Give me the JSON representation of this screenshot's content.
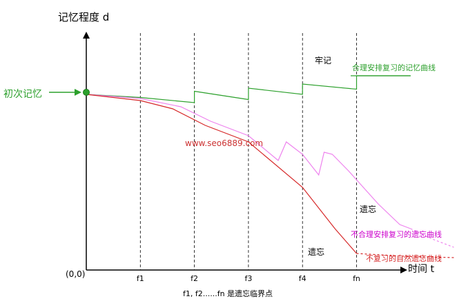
{
  "chart_data": {
    "type": "line",
    "title": "",
    "xlabel": "时间 t",
    "ylabel": "记忆程度 d",
    "origin_label": "(0,0)",
    "x_ticks": [
      "f1",
      "f2",
      "f3",
      "f4",
      "fn"
    ],
    "x_tick_positions": [
      1,
      2,
      3,
      4,
      5
    ],
    "xlim": [
      0,
      6.9
    ],
    "ylim": [
      0,
      100
    ],
    "grid": "dashed vertical lines at f1..fn",
    "footnote": "f1, f2......fn 是遗忘临界点",
    "watermark": "www.seo6889.com",
    "start_label": "初次记忆",
    "colors": {
      "reasonable_review": "#2ca02c",
      "unreasonable_review": "#ee82ee",
      "natural_forgetting": "#d62728",
      "axes": "#000000",
      "start_arrow": "#2ca02c",
      "watermark": "#cc3333"
    },
    "series": [
      {
        "name": "合理安排复习的记忆曲线",
        "annotation": "牢记",
        "style": "solid",
        "points": [
          [
            0,
            85
          ],
          [
            1,
            83.5
          ],
          [
            2,
            81
          ],
          [
            2,
            86.5
          ],
          [
            3,
            82.5
          ],
          [
            3,
            88
          ],
          [
            4,
            85
          ],
          [
            4,
            90
          ],
          [
            5,
            87.5
          ],
          [
            5,
            94
          ],
          [
            6.0,
            94
          ]
        ]
      },
      {
        "name": "不合理安排复习的遗忘曲线",
        "annotation": "遗忘",
        "style": "solid",
        "points": [
          [
            0,
            85
          ],
          [
            1,
            83
          ],
          [
            1.75,
            79
          ],
          [
            2.3,
            72
          ],
          [
            3,
            65
          ],
          [
            3.55,
            53
          ],
          [
            3.7,
            62
          ],
          [
            4.0,
            56
          ],
          [
            4.3,
            46
          ],
          [
            4.4,
            57
          ],
          [
            4.55,
            56
          ],
          [
            4.85,
            48
          ],
          [
            5.4,
            32
          ],
          [
            5.8,
            22
          ],
          [
            6.0,
            20
          ]
        ]
      },
      {
        "name": "",
        "style": "dashed",
        "points": [
          [
            6.0,
            20
          ],
          [
            6.4,
            15
          ],
          [
            6.8,
            11
          ]
        ]
      },
      {
        "name": "不复习的自然遗忘曲线",
        "annotation": "遗忘",
        "style": "solid",
        "points": [
          [
            0,
            85
          ],
          [
            1,
            82
          ],
          [
            1.6,
            78
          ],
          [
            2.2,
            70
          ],
          [
            3,
            62
          ],
          [
            4,
            40
          ],
          [
            4.6,
            20
          ],
          [
            5,
            8
          ]
        ]
      },
      {
        "name": "",
        "style": "dashed",
        "points": [
          [
            5,
            8
          ],
          [
            6,
            6.5
          ],
          [
            6.8,
            6
          ]
        ]
      }
    ]
  }
}
